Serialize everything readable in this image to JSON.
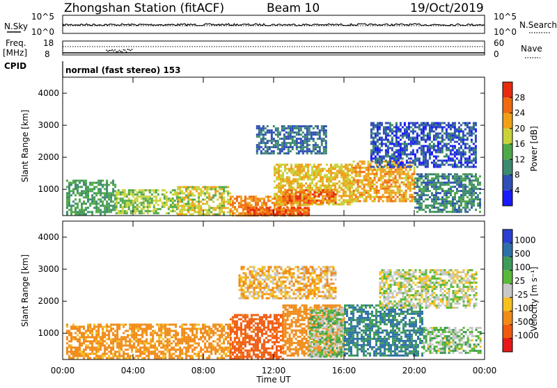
{
  "header": {
    "station": "Zhongshan Station (fitACF)",
    "beam": "Beam 10",
    "date": "19/Oct/2019"
  },
  "top_panels": {
    "nsky_label": "N.Sky",
    "nsky_ticks": [
      "10^5",
      "10^0"
    ],
    "nsearch_label": "N.Search",
    "nsearch_ticks": [
      "10^5",
      "10^0"
    ],
    "freq_label": "Freq.",
    "freq_unit": "[MHz]",
    "freq_ticks": [
      "18",
      "8"
    ],
    "nave_label": "Nave",
    "nave_ticks": [
      "60",
      "0"
    ],
    "cpid_label": "CPID",
    "cpid_text": "normal (fast stereo) 153"
  },
  "axes": {
    "xlabel": "Time UT",
    "x_ticks": [
      "00:00",
      "04:00",
      "08:00",
      "12:00",
      "16:00",
      "20:00",
      "00:00"
    ],
    "ylabel": "Slant Range [km]",
    "y_ticks": [
      "1000",
      "2000",
      "3000",
      "4000"
    ]
  },
  "colorbars": {
    "power_label": "Power [dB]",
    "power_ticks": [
      "4",
      "8",
      "12",
      "16",
      "20",
      "24",
      "28"
    ],
    "power_colors": [
      "#1a1aff",
      "#2f4fb5",
      "#3d8a6e",
      "#4fa84a",
      "#c9d23a",
      "#f0a018",
      "#f06a10",
      "#e82a10"
    ],
    "velocity_label": "Velocity [m s⁻¹]",
    "velocity_ticks": [
      "1000",
      "500",
      "100",
      "25",
      "-25",
      "-100",
      "-500",
      "-1000"
    ],
    "velocity_colors": [
      "#2a3fd0",
      "#2e70a8",
      "#3e9a5a",
      "#5ab83a",
      "#c8c8c8",
      "#f5c020",
      "#f08a18",
      "#f05a10",
      "#e81818"
    ]
  },
  "chart_data": {
    "type": "heatmap",
    "x_range_hours": [
      0,
      24
    ],
    "y_range_km": [
      180,
      4500
    ],
    "power_panel": {
      "colorbar_range_db": [
        0,
        32
      ],
      "regions": [
        {
          "t0": 0.2,
          "t1": 3.0,
          "r0": 250,
          "r1": 1300,
          "level": 12
        },
        {
          "t0": 3.0,
          "t1": 6.5,
          "r0": 250,
          "r1": 1000,
          "level": 16
        },
        {
          "t0": 6.5,
          "t1": 9.5,
          "r0": 200,
          "r1": 1100,
          "level": 18
        },
        {
          "t0": 9.5,
          "t1": 14.0,
          "r0": 200,
          "r1": 800,
          "level": 24
        },
        {
          "t0": 10.5,
          "t1": 14.0,
          "r0": 200,
          "r1": 450,
          "level": 28
        },
        {
          "t0": 12.0,
          "t1": 16.5,
          "r0": 500,
          "r1": 1800,
          "level": 20
        },
        {
          "t0": 12.5,
          "t1": 15.5,
          "r0": 600,
          "r1": 1000,
          "level": 26
        },
        {
          "t0": 16.5,
          "t1": 20.0,
          "r0": 600,
          "r1": 1900,
          "level": 22
        },
        {
          "t0": 20.0,
          "t1": 23.8,
          "r0": 300,
          "r1": 1500,
          "level": 10
        },
        {
          "t0": 11.0,
          "t1": 15.0,
          "r0": 2100,
          "r1": 3000,
          "level": 8
        },
        {
          "t0": 17.5,
          "t1": 23.5,
          "r0": 1700,
          "r1": 3100,
          "level": 6
        }
      ]
    },
    "velocity_panel": {
      "colorbar_range_ms": [
        -1000,
        1000
      ],
      "regions": [
        {
          "t0": 0.2,
          "t1": 9.5,
          "r0": 250,
          "r1": 1300,
          "velocity": -100
        },
        {
          "t0": 9.5,
          "t1": 12.5,
          "r0": 200,
          "r1": 1600,
          "velocity": -300
        },
        {
          "t0": 12.5,
          "t1": 16.0,
          "r0": 300,
          "r1": 1900,
          "velocity": -150
        },
        {
          "t0": 14.0,
          "t1": 16.0,
          "r0": 300,
          "r1": 1800,
          "velocity": 30
        },
        {
          "t0": 16.0,
          "t1": 20.5,
          "r0": 300,
          "r1": 1900,
          "velocity": 250
        },
        {
          "t0": 20.5,
          "t1": 23.8,
          "r0": 400,
          "r1": 1200,
          "velocity": 30
        },
        {
          "t0": 10.0,
          "t1": 15.5,
          "r0": 2100,
          "r1": 3100,
          "velocity": -50
        },
        {
          "t0": 18.0,
          "t1": 23.5,
          "r0": 1800,
          "r1": 3000,
          "velocity": 0
        }
      ]
    }
  }
}
